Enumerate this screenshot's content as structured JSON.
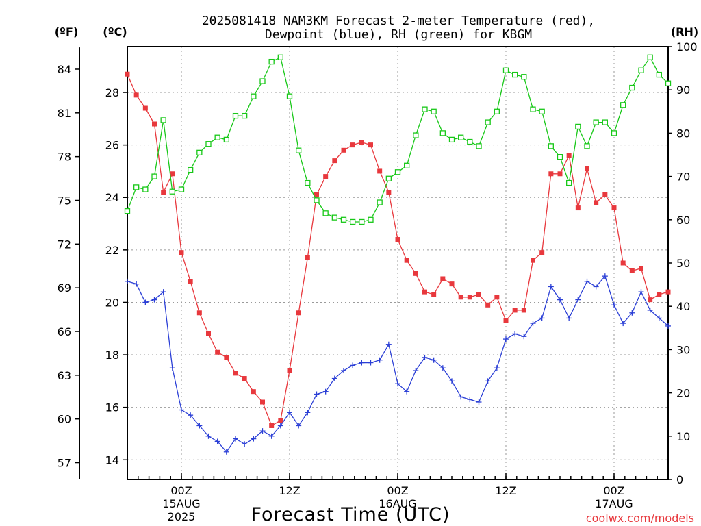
{
  "chart_data": {
    "type": "line",
    "title_line1": "2025081418 NAM3KM Forecast 2-meter Temperature (red),",
    "title_line2": "Dewpoint (blue), RH (green) for KBGM",
    "xlabel": "Forecast Time (UTC)",
    "watermark": "coolwx.com/models",
    "unit_f": "(ºF)",
    "unit_c": "(ºC)",
    "unit_rh": "(RH)",
    "x_range_hours": [
      -5,
      45
    ],
    "x_ticks": [
      {
        "hour": 0,
        "time": "00Z",
        "date": "15AUG",
        "year": "2025"
      },
      {
        "hour": 10,
        "time": "12Z",
        "date": "",
        "year": ""
      },
      {
        "hour": 20,
        "time": "00Z",
        "date": "16AUG",
        "year": ""
      },
      {
        "hour": 30,
        "time": "12Z",
        "date": "",
        "year": ""
      },
      {
        "hour": 40,
        "time": "00Z",
        "date": "17AUG",
        "year": ""
      }
    ],
    "y_c_range": [
      13.25,
      29.75
    ],
    "y_c_ticks": [
      14,
      16,
      18,
      20,
      22,
      24,
      26,
      28
    ],
    "y_f_ticks": [
      57,
      60,
      63,
      66,
      69,
      72,
      75,
      78,
      81,
      84
    ],
    "y_rh_range": [
      0,
      100
    ],
    "y_rh_ticks": [
      0,
      10,
      20,
      30,
      40,
      50,
      60,
      70,
      80,
      90,
      100
    ],
    "colors": {
      "temperature": "#e8383d",
      "dewpoint": "#2b3fd6",
      "rh": "#18c818"
    },
    "series": [
      {
        "name": "Temperature",
        "axis": "c",
        "marker": "filled-square",
        "values": [
          28.7,
          27.9,
          27.4,
          26.8,
          24.2,
          24.9,
          21.9,
          20.8,
          19.6,
          18.8,
          18.1,
          17.9,
          17.3,
          17.1,
          16.6,
          16.2,
          15.3,
          15.5,
          17.4,
          19.6,
          21.7,
          24.1,
          24.8,
          25.4,
          25.8,
          26.0,
          26.1,
          26.0,
          25.0,
          24.2,
          22.4,
          21.6,
          21.1,
          20.4,
          20.3,
          20.9,
          20.7,
          20.2,
          20.2,
          20.3,
          19.9,
          20.2,
          19.3,
          19.7,
          19.7,
          21.6,
          21.9,
          24.9,
          24.9,
          25.6,
          23.6,
          25.1,
          23.8,
          24.1,
          23.6,
          21.5,
          21.2,
          21.3,
          20.1,
          20.3,
          20.4
        ]
      },
      {
        "name": "Dewpoint",
        "axis": "c",
        "marker": "plus",
        "values": [
          20.8,
          20.7,
          20.0,
          20.1,
          20.4,
          17.5,
          15.9,
          15.7,
          15.3,
          14.9,
          14.7,
          14.3,
          14.8,
          14.6,
          14.8,
          15.1,
          14.9,
          15.3,
          15.8,
          15.3,
          15.8,
          16.5,
          16.6,
          17.1,
          17.4,
          17.6,
          17.7,
          17.7,
          17.8,
          18.4,
          16.9,
          16.6,
          17.4,
          17.9,
          17.8,
          17.5,
          17.0,
          16.4,
          16.3,
          16.2,
          17.0,
          17.5,
          18.6,
          18.8,
          18.7,
          19.2,
          19.4,
          20.6,
          20.1,
          19.4,
          20.1,
          20.8,
          20.6,
          21.0,
          19.9,
          19.2,
          19.6,
          20.4,
          19.7,
          19.4,
          19.1
        ]
      },
      {
        "name": "RH",
        "axis": "rh",
        "marker": "open-square",
        "values": [
          62,
          67.5,
          67,
          70,
          83,
          66.5,
          67,
          71.5,
          75.5,
          77.5,
          79,
          78.5,
          84,
          84,
          88.5,
          92,
          96.5,
          97.5,
          88.5,
          76,
          68.5,
          64.5,
          61.5,
          60.5,
          60,
          59.5,
          59.5,
          60,
          64,
          69.5,
          71,
          72.5,
          79.5,
          85.5,
          85,
          80,
          78.5,
          79,
          78,
          77,
          82.5,
          85,
          94.5,
          93.5,
          93,
          85.5,
          85,
          77,
          74.5,
          68.5,
          81.5,
          77,
          82.5,
          82.5,
          80,
          86.5,
          90.5,
          94.5,
          97.5,
          93.5,
          91.5
        ]
      }
    ]
  }
}
